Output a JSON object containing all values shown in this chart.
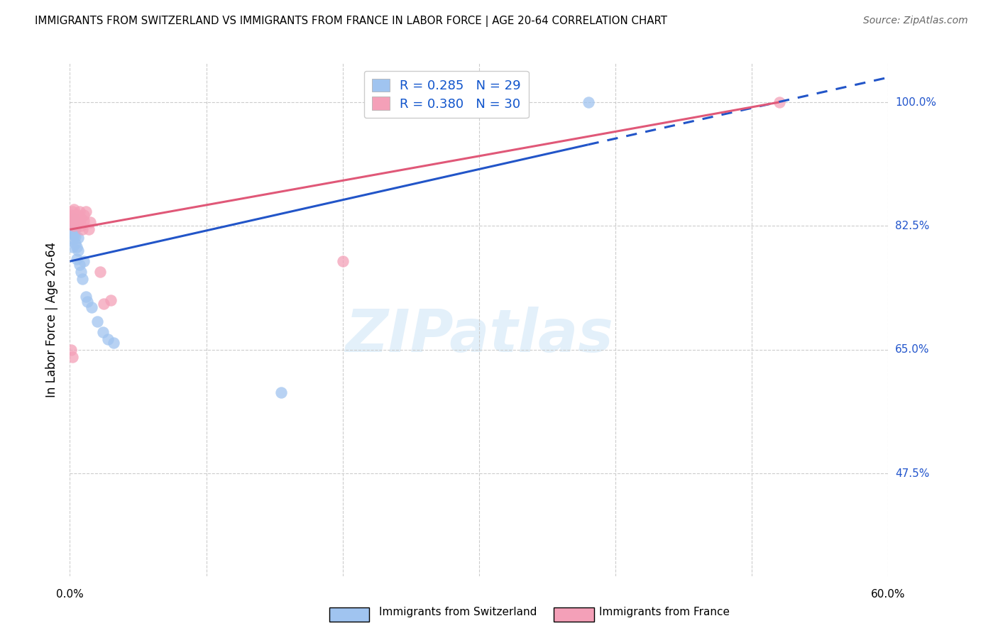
{
  "title": "IMMIGRANTS FROM SWITZERLAND VS IMMIGRANTS FROM FRANCE IN LABOR FORCE | AGE 20-64 CORRELATION CHART",
  "source": "Source: ZipAtlas.com",
  "ylabel": "In Labor Force | Age 20-64",
  "xlim": [
    0.0,
    0.6
  ],
  "ylim": [
    0.33,
    1.055
  ],
  "ytick_values": [
    1.0,
    0.825,
    0.65,
    0.475
  ],
  "ytick_labels": [
    "100.0%",
    "82.5%",
    "65.0%",
    "47.5%"
  ],
  "xtick_values": [
    0.0,
    0.1,
    0.2,
    0.3,
    0.4,
    0.5,
    0.6
  ],
  "r_swiss": 0.285,
  "n_swiss": 29,
  "r_france": 0.38,
  "n_france": 30,
  "legend_label_swiss": "Immigrants from Switzerland",
  "legend_label_france": "Immigrants from France",
  "color_swiss": "#a0c4f0",
  "color_france": "#f4a0b8",
  "line_color_swiss": "#2255c8",
  "line_color_france": "#e05878",
  "swiss_x": [
    0.001,
    0.001,
    0.002,
    0.003,
    0.003,
    0.004,
    0.004,
    0.005,
    0.005,
    0.006,
    0.006,
    0.007,
    0.008,
    0.009,
    0.01,
    0.012,
    0.013,
    0.016,
    0.02,
    0.024,
    0.028,
    0.032,
    0.002,
    0.002,
    0.003,
    0.004,
    0.001,
    0.155,
    0.38
  ],
  "swiss_y": [
    0.83,
    0.815,
    0.828,
    0.835,
    0.812,
    0.82,
    0.8,
    0.795,
    0.778,
    0.79,
    0.808,
    0.77,
    0.76,
    0.75,
    0.775,
    0.725,
    0.718,
    0.71,
    0.69,
    0.675,
    0.665,
    0.66,
    0.795,
    0.807,
    0.82,
    0.81,
    0.82,
    0.59,
    1.0
  ],
  "france_x": [
    0.001,
    0.001,
    0.002,
    0.002,
    0.003,
    0.003,
    0.004,
    0.005,
    0.006,
    0.007,
    0.008,
    0.009,
    0.01,
    0.012,
    0.015,
    0.003,
    0.004,
    0.005,
    0.006,
    0.007,
    0.008,
    0.01,
    0.014,
    0.022,
    0.025,
    0.03,
    0.2,
    0.52,
    0.001,
    0.002
  ],
  "france_y": [
    0.84,
    0.835,
    0.845,
    0.828,
    0.848,
    0.832,
    0.84,
    0.835,
    0.84,
    0.845,
    0.835,
    0.82,
    0.84,
    0.845,
    0.83,
    0.825,
    0.838,
    0.828,
    0.83,
    0.835,
    0.825,
    0.832,
    0.82,
    0.76,
    0.715,
    0.72,
    0.775,
    1.0,
    0.65,
    0.64
  ],
  "swiss_line_x0": 0.0,
  "swiss_line_y0": 0.775,
  "swiss_line_x1": 0.38,
  "swiss_line_y1": 0.94,
  "swiss_line_dash_x0": 0.38,
  "swiss_line_dash_y0": 0.94,
  "swiss_line_dash_x1": 0.6,
  "swiss_line_dash_y1": 1.035,
  "france_line_x0": 0.0,
  "france_line_y0": 0.82,
  "france_line_x1": 0.52,
  "france_line_y1": 1.0
}
